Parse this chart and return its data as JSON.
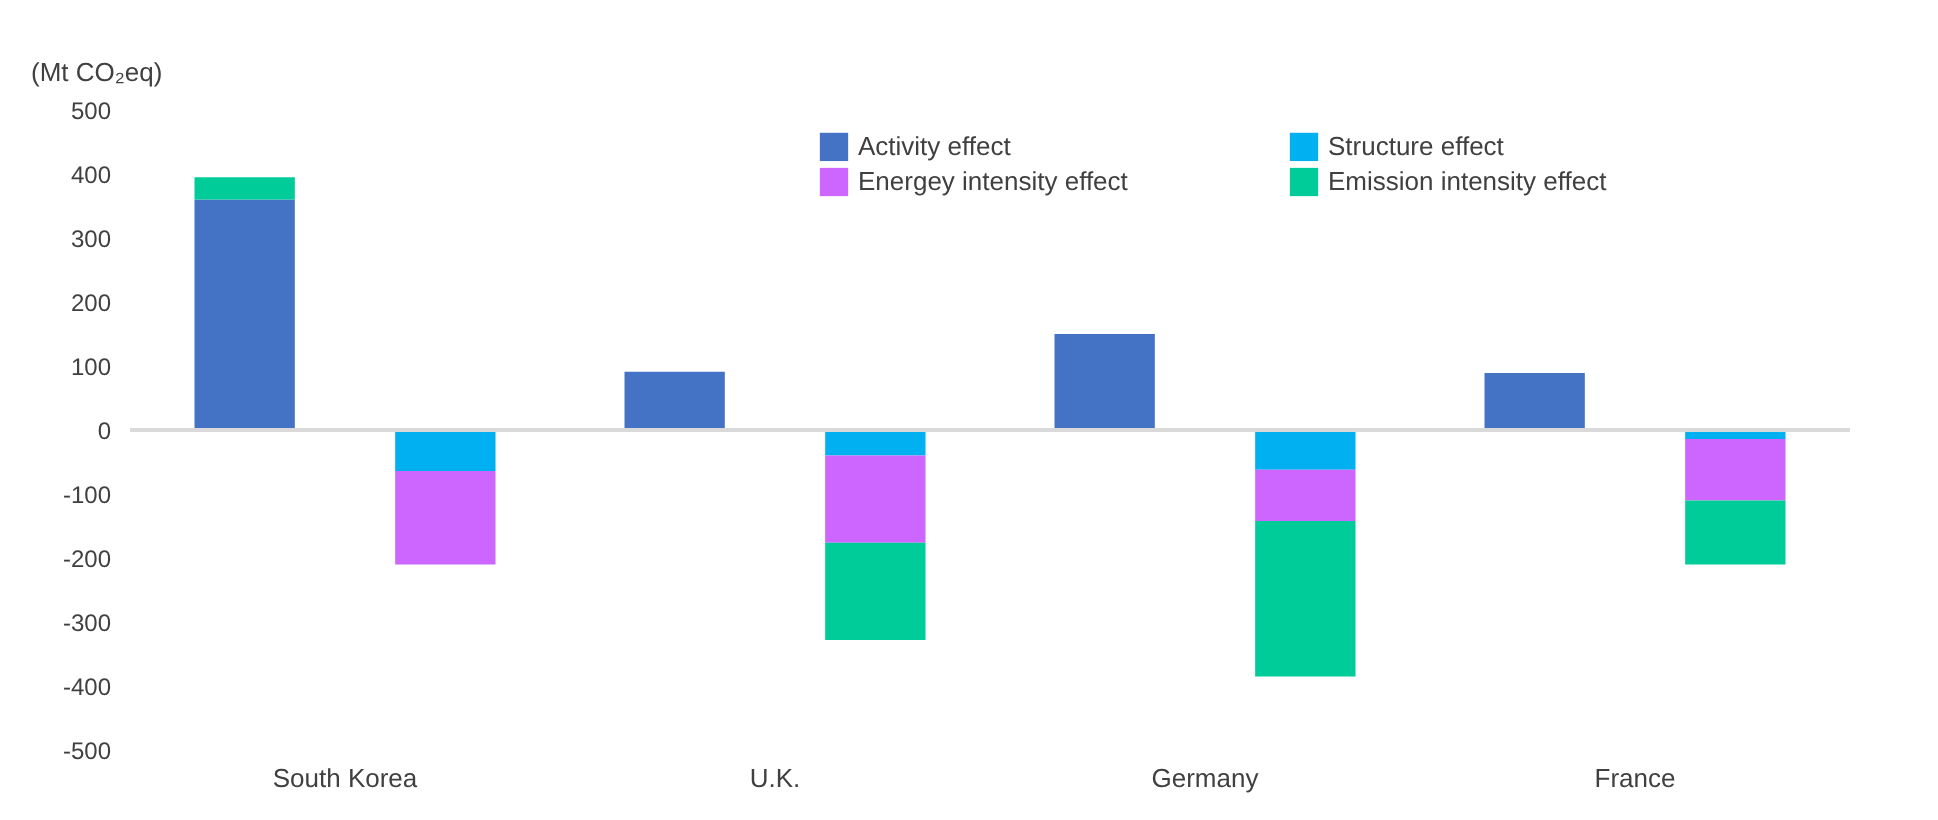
{
  "chart_data": {
    "type": "bar",
    "stacked": true,
    "ylabel": "(Mt CO₂eq)",
    "categories": [
      "South Korea",
      "U.K.",
      "Germany",
      "France"
    ],
    "series": [
      {
        "name": "Activity effect",
        "color": "#4472c4",
        "values": [
          360,
          91,
          150,
          89
        ]
      },
      {
        "name": "Structure effect",
        "color": "#00b0f0",
        "values": [
          -64,
          -40,
          -62,
          -14
        ]
      },
      {
        "name": "Energey intensity effect",
        "color": "#cc66ff",
        "values": [
          -146,
          -136,
          -80,
          -96
        ]
      },
      {
        "name": "Emission intensity effect",
        "color": "#00cc99",
        "values": [
          35,
          -152,
          -243,
          -100
        ]
      }
    ],
    "ylim": [
      -500,
      500
    ],
    "yticks": [
      -500,
      -400,
      -300,
      -200,
      -100,
      0,
      100,
      200,
      300,
      400,
      500
    ],
    "ref_lines": [
      {
        "axis": "y",
        "value": 0,
        "color": "#d9d9d9"
      }
    ],
    "grid": false,
    "legend": "top"
  }
}
